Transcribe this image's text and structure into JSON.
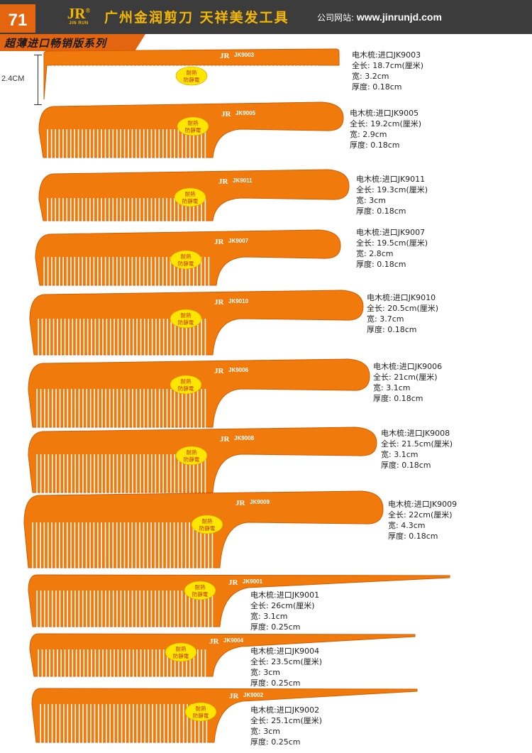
{
  "page_number": "71",
  "brand": {
    "logo_text": "JR",
    "logo_sub": "JIN RUN"
  },
  "company_name": "广州金润剪刀 天祥美发工具",
  "website_label": "公司网站:",
  "website_url": "www.jinrunjd.com",
  "series_title": "超薄进口畅销版系列",
  "dimension_label": "2.4CM",
  "badge_text": [
    "耐熱",
    "防靜電"
  ],
  "colors": {
    "comb": "#f07a0c",
    "comb_edge": "#d25c00",
    "header": "#3c3c3c",
    "accent": "#e4650f",
    "badge": "#ffe600",
    "brand": "#f5b800"
  },
  "products": [
    {
      "model": "JK9003",
      "name": "电木梳:进口JK9003",
      "length": "全长: 18.7cm(厘米)",
      "width": "宽: 3.2cm",
      "thickness": "厚度: 0.18cm"
    },
    {
      "model": "JK9005",
      "name": "电木梳:进口JK9005",
      "length": "全长: 19.2cm(厘米)",
      "width": "宽: 2.9cm",
      "thickness": "厚度: 0.18cm"
    },
    {
      "model": "JK9011",
      "name": "电木梳:进口JK9011",
      "length": "全长: 19.3cm(厘米)",
      "width": "宽: 3cm",
      "thickness": "厚度: 0.18cm"
    },
    {
      "model": "JK9007",
      "name": "电木梳:进口JK9007",
      "length": "全长: 19.5cm(厘米)",
      "width": "宽: 2.8cm",
      "thickness": "厚度: 0.18cm"
    },
    {
      "model": "JK9010",
      "name": "电木梳:进口JK9010",
      "length": "全长: 20.5cm(厘米)",
      "width": "宽: 3.7cm",
      "thickness": "厚度: 0.18cm"
    },
    {
      "model": "JK9006",
      "name": "电木梳:进口JK9006",
      "length": "全长: 21cm(厘米)",
      "width": "宽: 3.1cm",
      "thickness": "厚度: 0.18cm"
    },
    {
      "model": "JK9008",
      "name": "电木梳:进口JK9008",
      "length": "全长: 21.5cm(厘米)",
      "width": "宽: 3.1cm",
      "thickness": "厚度: 0.18cm"
    },
    {
      "model": "JK9009",
      "name": "电木梳:进口JK9009",
      "length": "全长: 22cm(厘米)",
      "width": "宽: 4.3cm",
      "thickness": "厚度: 0.18cm"
    },
    {
      "model": "JK9001",
      "name": "电木梳:进口JK9001",
      "length": "全长: 26cm(厘米)",
      "width": "宽: 3.1cm",
      "thickness": "厚度: 0.25cm"
    },
    {
      "model": "JK9004",
      "name": "电木梳:进口JK9004",
      "length": "全长: 23.5cm(厘米)",
      "width": "宽: 3cm",
      "thickness": "厚度: 0.25cm"
    },
    {
      "model": "JK9002",
      "name": "电木梳:进口JK9002",
      "length": "全长: 25.1cm(厘米)",
      "width": "宽: 3cm",
      "thickness": "厚度: 0.25cm"
    }
  ]
}
